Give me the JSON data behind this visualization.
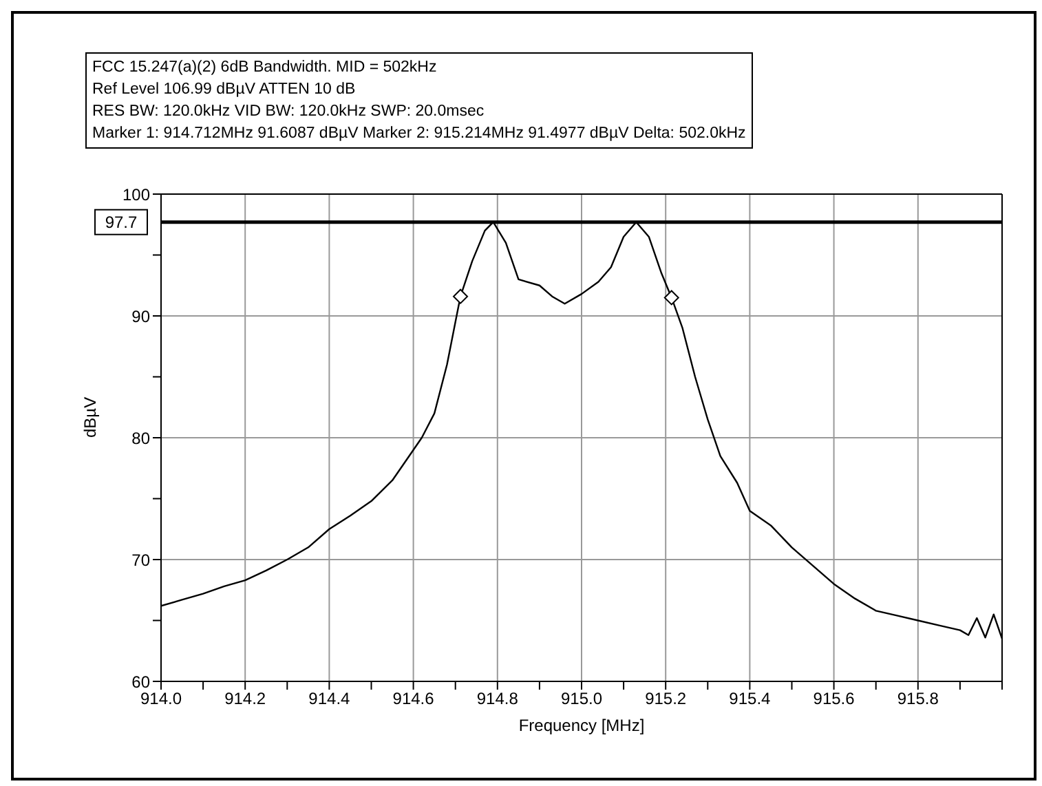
{
  "chart_data": {
    "type": "line",
    "title": "FCC 15.247(a)(2) 6dB Bandwidth. MID = 502kHz",
    "annotations": [
      "Ref Level 106.99 dBµV    ATTEN 10 dB",
      "RES BW: 120.0kHz  VID BW: 120.0kHz  SWP: 20.0msec",
      "Marker 1: 914.712MHz  91.6087 dBµV    Marker 2: 915.214MHz  91.4977 dBµV Delta: 502.0kHz"
    ],
    "xlabel": "Frequency [MHz]",
    "ylabel": "dBµV",
    "xlim": [
      914,
      916
    ],
    "xticks": [
      {
        "value": 914,
        "label": "914.0"
      },
      {
        "value": 914.1,
        "label": null
      },
      {
        "value": 914.2,
        "label": "914.2"
      },
      {
        "value": 914.3,
        "label": null
      },
      {
        "value": 914.4,
        "label": "914.4"
      },
      {
        "value": 914.5,
        "label": null
      },
      {
        "value": 914.6,
        "label": "914.6"
      },
      {
        "value": 914.7,
        "label": null
      },
      {
        "value": 914.8,
        "label": "914.8"
      },
      {
        "value": 914.9,
        "label": null
      },
      {
        "value": 915,
        "label": "915.0"
      },
      {
        "value": 915.1,
        "label": null
      },
      {
        "value": 915.2,
        "label": "915.2"
      },
      {
        "value": 915.3,
        "label": null
      },
      {
        "value": 915.4,
        "label": "915.4"
      },
      {
        "value": 915.5,
        "label": null
      },
      {
        "value": 915.6,
        "label": "915.6"
      },
      {
        "value": 915.7,
        "label": null
      },
      {
        "value": 915.8,
        "label": "915.8"
      },
      {
        "value": 915.9,
        "label": null
      },
      {
        "value": 916,
        "label": null
      }
    ],
    "ylim": [
      60,
      100
    ],
    "yticks": [
      60,
      {
        "value": 65,
        "label": null
      },
      70,
      {
        "value": 75,
        "label": null
      },
      80,
      {
        "value": 85,
        "label": null
      },
      90,
      {
        "value": 95,
        "label": null
      },
      100
    ],
    "grid": true,
    "ref_lines": [
      {
        "axis": "y",
        "value": 97.7,
        "label": "97.7",
        "color": "#000000"
      }
    ],
    "series": [
      {
        "color": "#000000",
        "marker": "none",
        "x": [
          914.0,
          914.05,
          914.1,
          914.15,
          914.2,
          914.25,
          914.3,
          914.35,
          914.4,
          914.45,
          914.5,
          914.55,
          914.6,
          914.62,
          914.65,
          914.68,
          914.7,
          914.712,
          914.74,
          914.77,
          914.79,
          914.82,
          914.85,
          914.9,
          914.93,
          914.96,
          915.0,
          915.04,
          915.07,
          915.1,
          915.13,
          915.16,
          915.19,
          915.214,
          915.24,
          915.27,
          915.3,
          915.33,
          915.37,
          915.4,
          915.45,
          915.5,
          915.55,
          915.6,
          915.65,
          915.7,
          915.75,
          915.8,
          915.85,
          915.9,
          915.92,
          915.94,
          915.96,
          915.98,
          916.0
        ],
        "values": [
          66.2,
          66.7,
          67.2,
          67.8,
          68.3,
          69.1,
          70.0,
          71.0,
          72.5,
          73.6,
          74.8,
          76.5,
          79.0,
          80.0,
          82.0,
          86.0,
          89.5,
          91.6,
          94.5,
          97.0,
          97.7,
          96.0,
          93.0,
          92.5,
          91.6,
          91.0,
          91.8,
          92.8,
          94.0,
          96.5,
          97.7,
          96.5,
          93.5,
          91.5,
          89.0,
          85.0,
          81.5,
          78.5,
          76.3,
          74.0,
          72.8,
          71.0,
          69.5,
          68.0,
          66.8,
          65.8,
          65.4,
          65.0,
          64.6,
          64.2,
          63.8,
          65.2,
          63.6,
          65.5,
          63.5
        ]
      },
      {
        "type": "scatter",
        "color": "#000000",
        "marker": "diamond",
        "x": [
          914.712,
          915.214
        ],
        "values": [
          91.6,
          91.5
        ]
      }
    ]
  }
}
